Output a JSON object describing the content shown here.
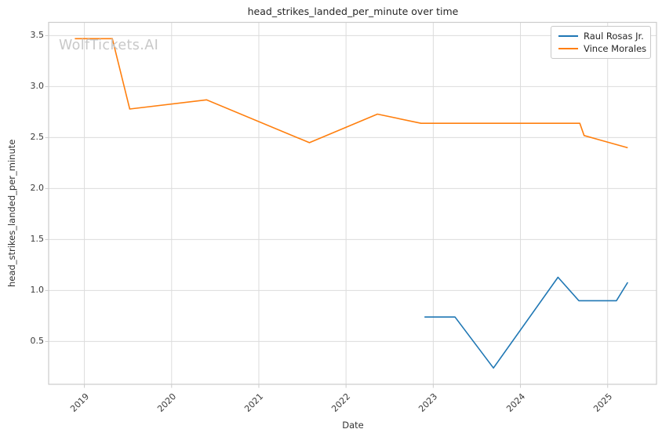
{
  "watermark": {
    "text": "WolfTickets.AI"
  },
  "chart_data": {
    "type": "line",
    "title": "head_strikes_landed_per_minute over time",
    "xlabel": "Date",
    "ylabel": "head_strikes_landed_per_minute",
    "xlim": [
      2018.59,
      2025.56
    ],
    "ylim": [
      0.08,
      3.63
    ],
    "xticks": [
      2019,
      2020,
      2021,
      2022,
      2023,
      2024,
      2025
    ],
    "yticks": [
      0.5,
      1.0,
      1.5,
      2.0,
      2.5,
      3.0,
      3.5
    ],
    "grid": true,
    "legend_position": "upper right",
    "series": [
      {
        "name": "Raul Rosas Jr.",
        "color": "#1f77b4",
        "x": [
          2022.9,
          2023.25,
          2023.69,
          2024.43,
          2024.67,
          2025.1,
          2025.23
        ],
        "y": [
          0.74,
          0.74,
          0.24,
          1.13,
          0.9,
          0.9,
          1.08
        ]
      },
      {
        "name": "Vince Morales",
        "color": "#ff7f0e",
        "x": [
          2018.89,
          2019.32,
          2019.52,
          2020.4,
          2021.58,
          2022.36,
          2022.86,
          2024.68,
          2024.73,
          2025.23
        ],
        "y": [
          3.47,
          3.47,
          2.78,
          2.87,
          2.45,
          2.73,
          2.64,
          2.64,
          2.52,
          2.4
        ]
      }
    ],
    "colors": {
      "grid": "#dcdcdc",
      "spine": "#cccccc",
      "tick_label": "#3b3b3b",
      "title": "#262626",
      "watermark": "#c8c8c8"
    }
  }
}
